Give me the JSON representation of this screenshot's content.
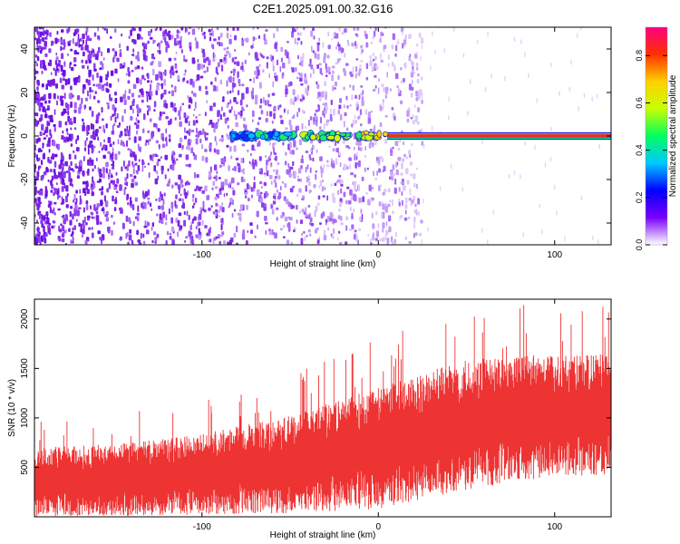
{
  "title": "C2E1.2025.091.00.32.G16",
  "colors": {
    "signal_line": "#e8302a",
    "snr_fill": "#ee3333",
    "noise_dots": "#7a1fe0",
    "axis": "#000000"
  },
  "chart_data": [
    {
      "type": "heatmap",
      "xlabel": "Height of straight line (km)",
      "ylabel": "Frequency (Hz)",
      "xlim": [
        -195,
        132
      ],
      "ylim": [
        -50,
        50
      ],
      "xticks": [
        -100,
        0,
        100
      ],
      "xtick_labels": [
        "-100",
        "0",
        "100"
      ],
      "yticks": [
        -40,
        -20,
        0,
        20,
        40
      ],
      "ytick_labels": [
        "-40",
        "-20",
        "0",
        "20",
        "40"
      ],
      "colorbar": {
        "label": "Normalized spectral amplitude",
        "range": [
          0,
          0.92
        ],
        "ticks": [
          0.0,
          0.2,
          0.4,
          0.6,
          0.8
        ],
        "tick_labels": [
          "0.0",
          "0.2",
          "0.4",
          "0.6",
          "0.8"
        ],
        "colormap": [
          "#ffffff",
          "#7a00ff",
          "#0000ff",
          "#00c8ff",
          "#00ff60",
          "#c8ff00",
          "#ffd000",
          "#ff3000",
          "#ff0080"
        ]
      },
      "signal": {
        "frequency_hz": 0,
        "x_start": -85,
        "x_end": 132,
        "strong_from_x": 5
      },
      "noise_region": {
        "x_start": -195,
        "x_end": 10
      }
    },
    {
      "type": "line",
      "xlabel": "Height of straight line (km)",
      "ylabel": "SNR (10 * v/v)",
      "xlim": [
        -195,
        132
      ],
      "ylim": [
        0,
        2200
      ],
      "xticks": [
        -100,
        0,
        100
      ],
      "xtick_labels": [
        "-100",
        "0",
        "100"
      ],
      "yticks": [
        500,
        1000,
        1500,
        2000
      ],
      "ytick_labels": [
        "500",
        "1000",
        "1500",
        "2000"
      ],
      "series": [
        {
          "x": [
            -195,
            -150,
            -100,
            -50,
            0,
            50,
            100,
            132
          ],
          "center": [
            350,
            370,
            430,
            530,
            690,
            930,
            1030,
            1030
          ],
          "spread": [
            320,
            330,
            370,
            450,
            560,
            600,
            560,
            560
          ]
        }
      ]
    }
  ]
}
